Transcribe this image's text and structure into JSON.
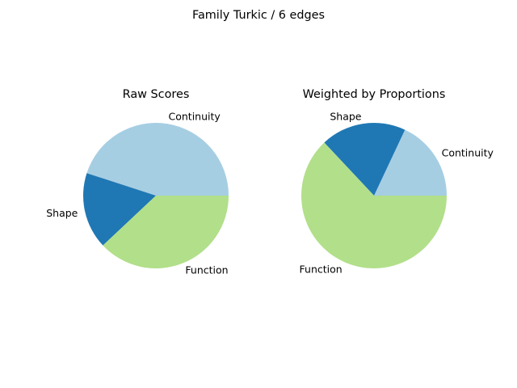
{
  "figure": {
    "suptitle": "Family Turkic / 6 edges"
  },
  "chart_data": [
    {
      "type": "pie",
      "title": "Raw Scores",
      "categories": [
        "Continuity",
        "Shape",
        "Function"
      ],
      "values": [
        0.45,
        0.17,
        0.38
      ],
      "colors": [
        "#a6cee3",
        "#1f78b4",
        "#b2df8a"
      ],
      "start_angle_deg": 0,
      "direction": "counterclockwise"
    },
    {
      "type": "pie",
      "title": "Weighted by Proportions",
      "categories": [
        "Continuity",
        "Shape",
        "Function"
      ],
      "values": [
        0.18,
        0.19,
        0.63
      ],
      "colors": [
        "#a6cee3",
        "#1f78b4",
        "#b2df8a"
      ],
      "start_angle_deg": 0,
      "direction": "counterclockwise"
    }
  ]
}
